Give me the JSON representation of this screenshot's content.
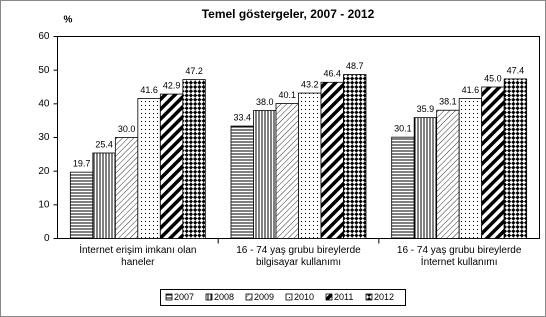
{
  "chart_data": {
    "type": "bar",
    "title": "Temel göstergeler, 2007 - 2012",
    "y_label": "%",
    "categories": [
      "İnternet erişim imkanı olan haneler",
      "16 - 74 yaş grubu bireylerde bilgisayar kullanımı",
      "16 - 74 yaş grubu bireylerde İnternet kullanımı"
    ],
    "series": [
      {
        "name": "2007",
        "color": "#000000",
        "pattern": "hlines",
        "values": [
          19.7,
          33.4,
          30.1
        ],
        "value_labels": [
          "19.7",
          "33.4",
          "30.1"
        ]
      },
      {
        "name": "2008",
        "color": "#000000",
        "pattern": "vlines",
        "values": [
          25.4,
          38.0,
          35.9
        ],
        "value_labels": [
          "25.4",
          "38.0",
          "35.9"
        ]
      },
      {
        "name": "2009",
        "color": "#000000",
        "pattern": "diag",
        "values": [
          30.0,
          40.1,
          38.1
        ],
        "value_labels": [
          "30.0",
          "40.1",
          "38.1"
        ]
      },
      {
        "name": "2010",
        "color": "#000000",
        "pattern": "dots",
        "values": [
          41.6,
          43.2,
          41.6
        ],
        "value_labels": [
          "41.6",
          "43.2",
          "41.6"
        ]
      },
      {
        "name": "2011",
        "color": "#000000",
        "pattern": "thick",
        "values": [
          42.9,
          46.4,
          45.0
        ],
        "value_labels": [
          "42.9",
          "46.4",
          "45.0"
        ]
      },
      {
        "name": "2012",
        "color": "#000000",
        "pattern": "checker",
        "values": [
          47.2,
          48.7,
          47.4
        ],
        "value_labels": [
          "47.2",
          "48.7",
          "47.4"
        ]
      }
    ],
    "ylim": [
      0,
      60
    ],
    "yticks": [
      0,
      10,
      20,
      30,
      40,
      50,
      60
    ],
    "grid": false
  }
}
